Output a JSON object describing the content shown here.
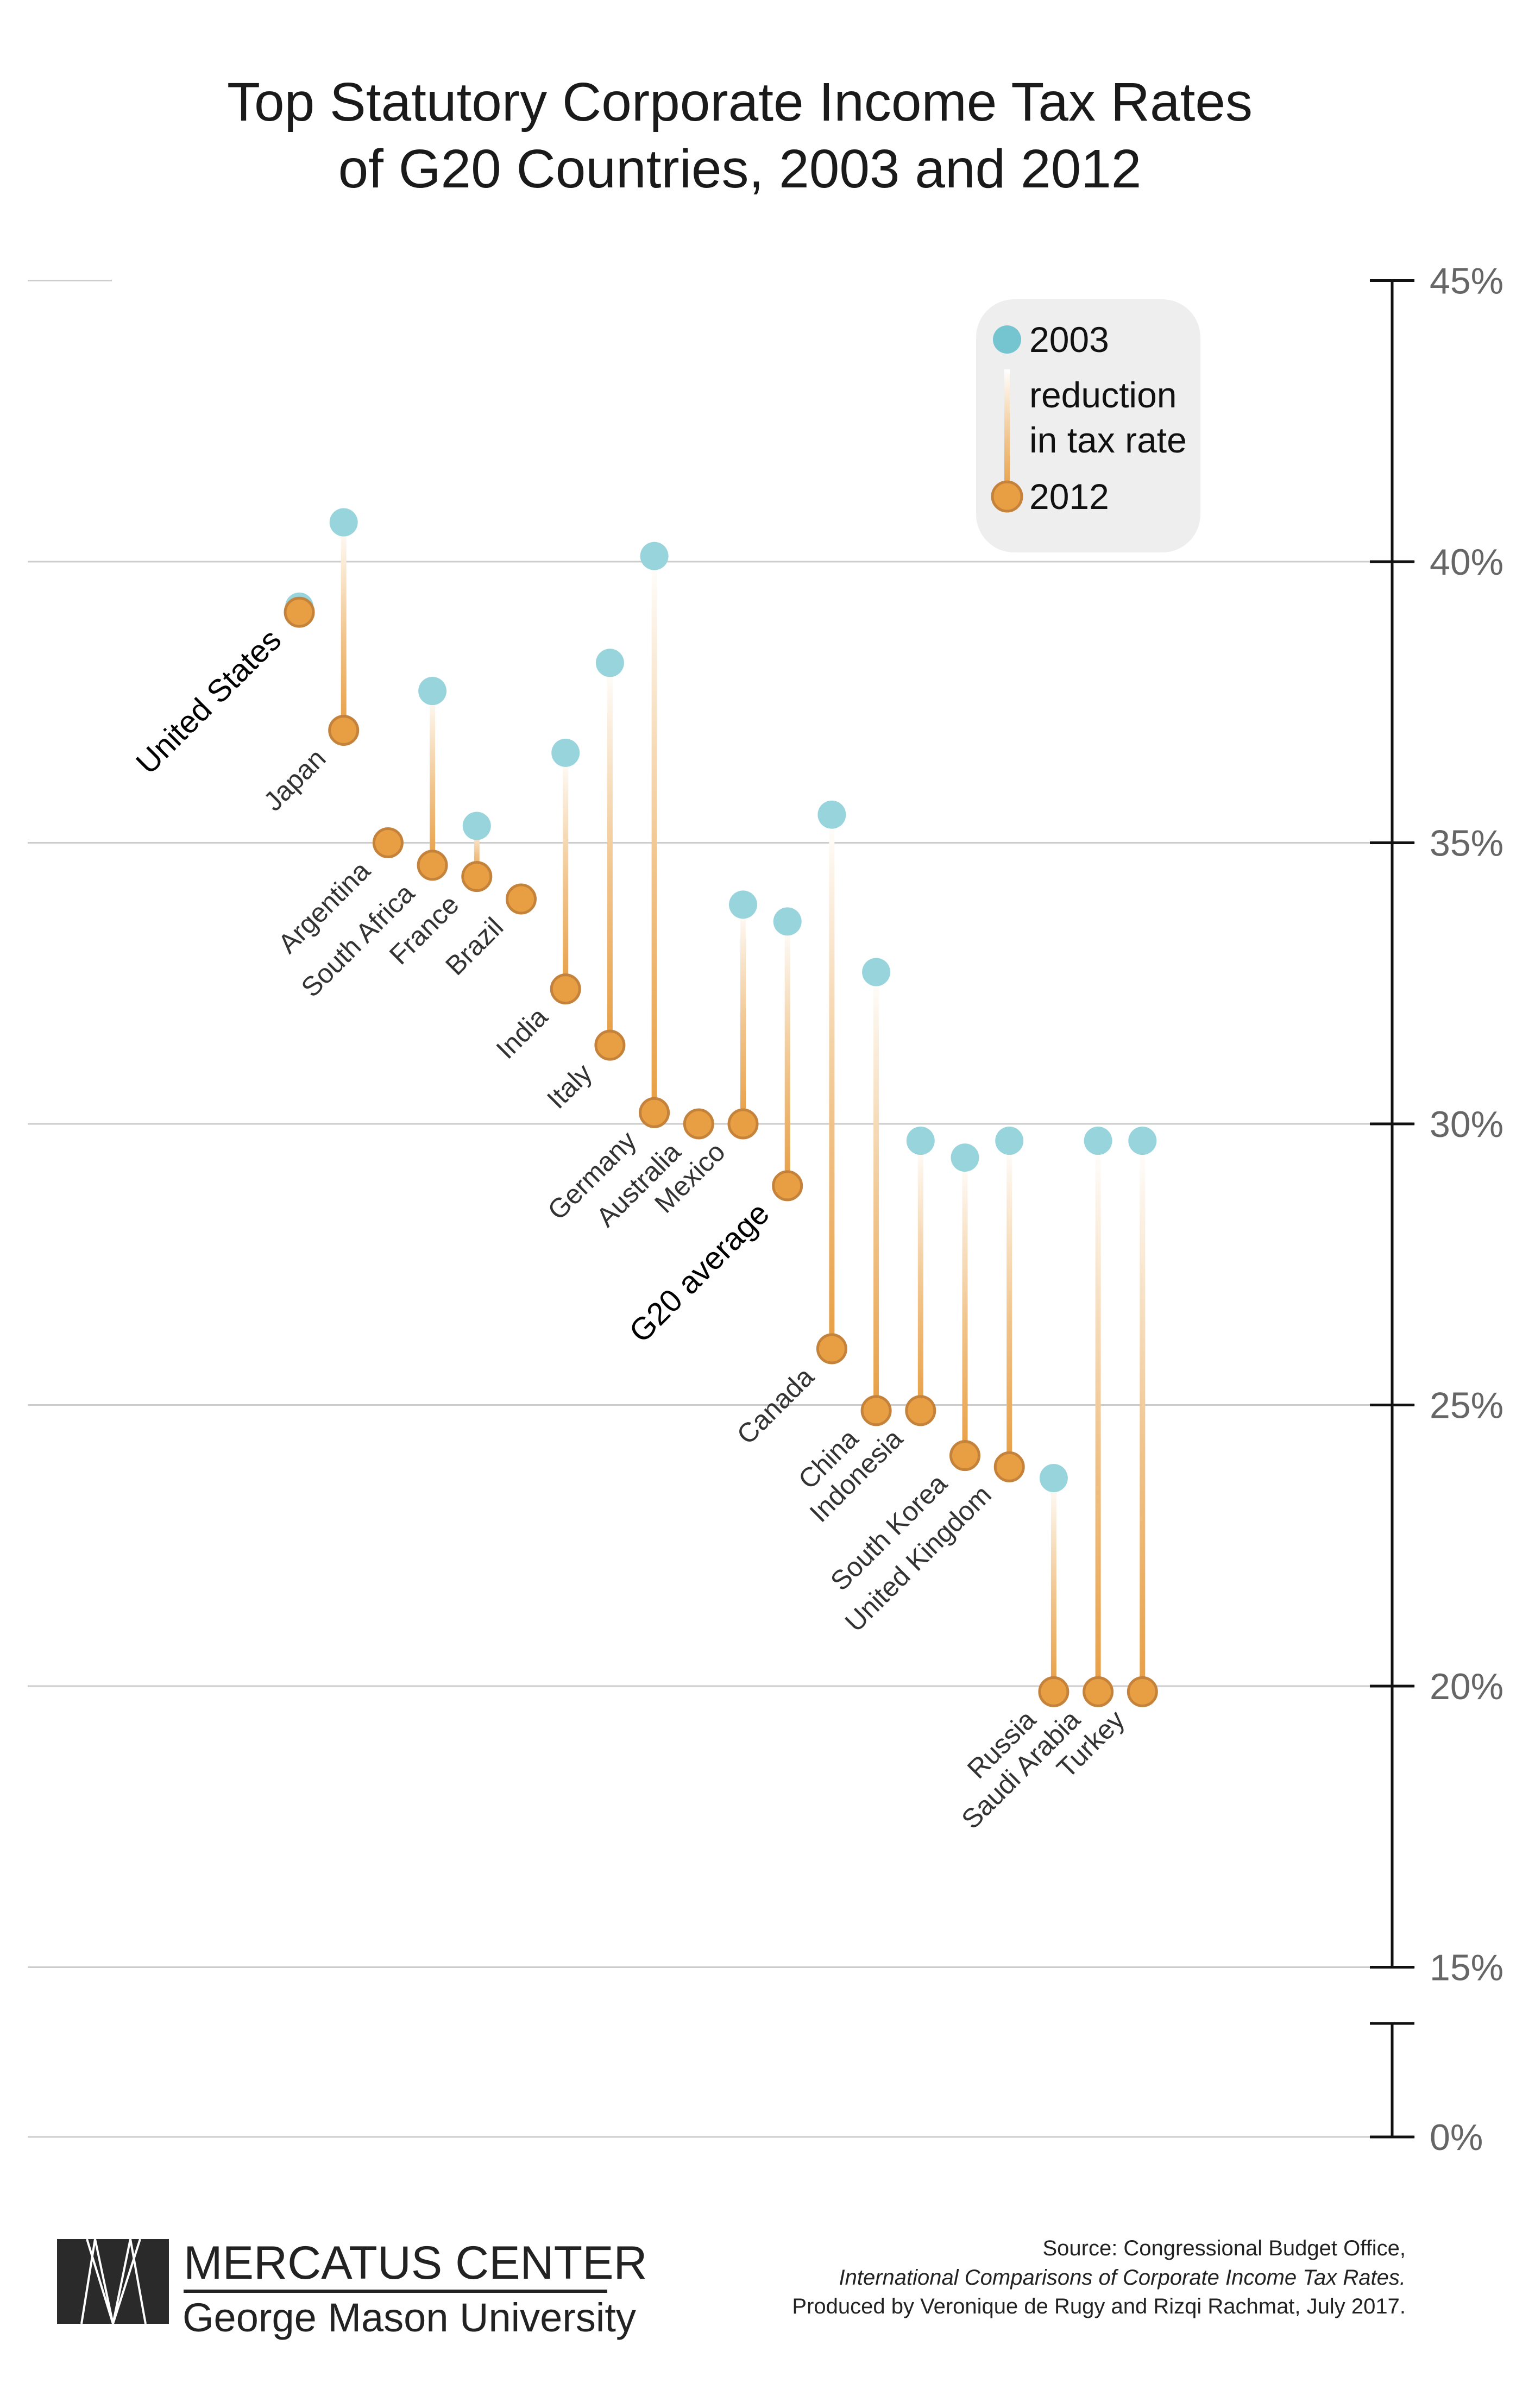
{
  "chart_data": {
    "type": "dumbbell",
    "title_lines": [
      "Top Statutory Corporate Income Tax Rates",
      "of G20 Countries, 2003 and 2012"
    ],
    "y_ticks": [
      0,
      15,
      20,
      25,
      30,
      35,
      40,
      45
    ],
    "y_tick_labels": [
      "0%",
      "15%",
      "20%",
      "25%",
      "30%",
      "35%",
      "40%",
      "45%"
    ],
    "ylim": [
      0,
      45
    ],
    "axis_break": [
      0,
      15
    ],
    "grid": true,
    "legend": {
      "placement": "top-right",
      "items": [
        "2003",
        "reduction",
        "in tax rate",
        "2012"
      ]
    },
    "colors": {
      "y2003": "#98d4dc",
      "y2012": "#e89e42",
      "y2012_stroke": "#c4823a",
      "grid": "#cccccc",
      "legend_bg": "#eeeeee"
    },
    "highlight": [
      "United States",
      "G20 average"
    ],
    "countries": [
      {
        "name": "United States",
        "y2003": 39.2,
        "y2012": 39.1
      },
      {
        "name": "Japan",
        "y2003": 40.7,
        "y2012": 37.0
      },
      {
        "name": "Argentina",
        "y2003": 35.0,
        "y2012": 35.0
      },
      {
        "name": "South Africa",
        "y2003": 37.7,
        "y2012": 34.6
      },
      {
        "name": "France",
        "y2003": 35.3,
        "y2012": 34.4
      },
      {
        "name": "Brazil",
        "y2003": 34.0,
        "y2012": 34.0
      },
      {
        "name": "India",
        "y2003": 36.6,
        "y2012": 32.4
      },
      {
        "name": "Italy",
        "y2003": 38.2,
        "y2012": 31.4
      },
      {
        "name": "Germany",
        "y2003": 40.1,
        "y2012": 30.2
      },
      {
        "name": "Australia",
        "y2003": 30.0,
        "y2012": 30.0
      },
      {
        "name": "Mexico",
        "y2003": 33.9,
        "y2012": 30.0
      },
      {
        "name": "G20 average",
        "y2003": 33.6,
        "y2012": 28.9
      },
      {
        "name": "Canada",
        "y2003": 35.5,
        "y2012": 26.0
      },
      {
        "name": "China",
        "y2003": 32.7,
        "y2012": 24.9
      },
      {
        "name": "Indonesia",
        "y2003": 29.7,
        "y2012": 24.9
      },
      {
        "name": "South Korea",
        "y2003": 29.4,
        "y2012": 24.1
      },
      {
        "name": "United Kingdom",
        "y2003": 29.7,
        "y2012": 23.9
      },
      {
        "name": "Russia",
        "y2003": 23.7,
        "y2012": 19.9
      },
      {
        "name": "Saudi Arabia",
        "y2003": 29.7,
        "y2012": 19.9
      },
      {
        "name": "Turkey",
        "y2003": 29.7,
        "y2012": 19.9
      }
    ]
  },
  "footer": {
    "logo_line1": "MERCATUS CENTER",
    "logo_line2": "George Mason University",
    "source_line1": "Source: Congressional Budget Office,",
    "source_line2": "International Comparisons of Corporate Income Tax Rates.",
    "source_line3": "Produced by Veronique de Rugy and Rizqi Rachmat, July 2017."
  }
}
